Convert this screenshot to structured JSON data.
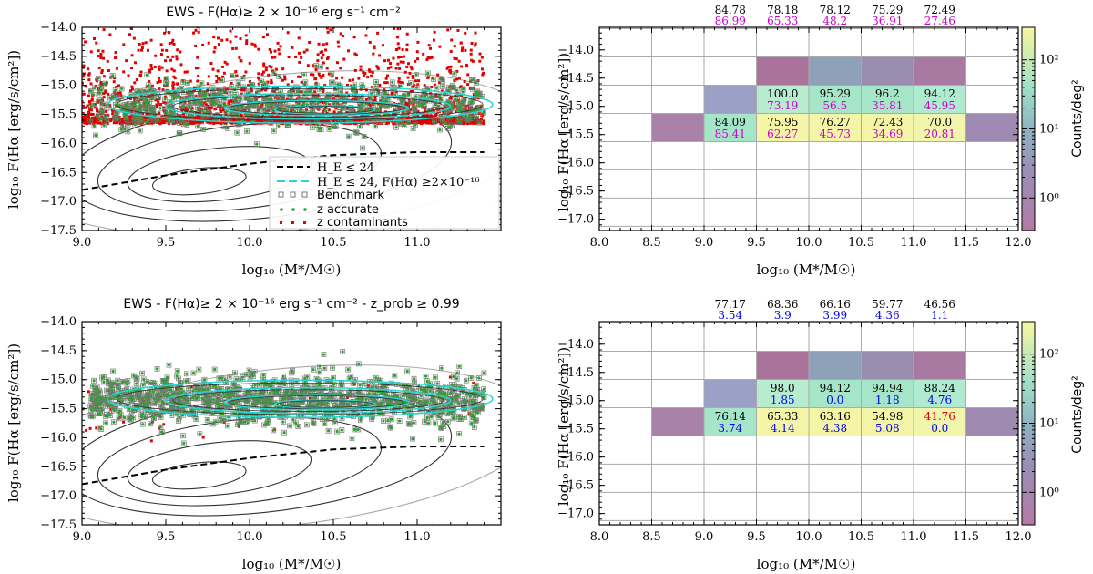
{
  "chart_data": [
    {
      "type": "scatter",
      "panel": "top-left",
      "title": "EWS - F(Hα)≥ 2 × 10⁻¹⁶ erg s⁻¹ cm⁻²",
      "xlabel": "log₁₀ (M*/M☉)",
      "ylabel": "log₁₀ F(Hα [erg/s/cm²])",
      "xlim": [
        9.0,
        11.5
      ],
      "ylim": [
        -17.5,
        -14.0
      ],
      "xticks": [
        "9.0",
        "9.5",
        "10.0",
        "10.5",
        "11.0"
      ],
      "yticks": [
        "-14.0",
        "-14.5",
        "-15.0",
        "-15.5",
        "-16.0",
        "-16.5",
        "-17.0",
        "-17.5"
      ],
      "dashed_line": {
        "x": [
          9.0,
          9.5,
          10.0,
          10.5,
          11.0,
          11.4
        ],
        "y": [
          -16.8,
          -16.55,
          -16.35,
          -16.2,
          -16.15,
          -16.15
        ]
      },
      "legend": {
        "placement": "lower-right",
        "entries": [
          "H_E ≤ 24",
          "H_E ≤ 24, F(Hα) ≥2×10⁻¹⁶",
          "Benchmark",
          "z accurate",
          "z contaminants"
        ]
      }
    },
    {
      "type": "heatmap",
      "panel": "top-right",
      "xlabel": "log₁₀ (M*/M☉)",
      "ylabel": "log₁₀ F(Hα [erg/s/cm²])",
      "xlim": [
        8.0,
        12.0
      ],
      "ylim": [
        -17.2,
        -13.6
      ],
      "xticks": [
        "8.0",
        "8.5",
        "9.0",
        "9.5",
        "10.0",
        "10.5",
        "11.0",
        "11.5",
        "12.0"
      ],
      "yticks": [
        "-14.0",
        "-14.5",
        "-15.0",
        "-15.5",
        "-16.0",
        "-16.5",
        "-17.0"
      ],
      "colorbar": {
        "label": "Counts/deg²",
        "ticks": [
          "10⁰",
          "10¹",
          "10²"
        ]
      },
      "column_labels": {
        "x": [
          9.25,
          9.75,
          10.25,
          10.75,
          11.25
        ],
        "top": [
          "84.78",
          "78.18",
          "78.12",
          "75.29",
          "72.49"
        ],
        "bottom": [
          "86.99",
          "65.33",
          "48.2",
          "36.91",
          "27.46"
        ],
        "bottom_colors": [
          "#cc00cc",
          "#cc00cc",
          "#cc00cc",
          "#cc00cc",
          "#cc00cc"
        ]
      },
      "cells": [
        {
          "x": 9.75,
          "y": -14.375,
          "color": "#a9739b"
        },
        {
          "x": 10.25,
          "y": -14.375,
          "color": "#8fa1b8"
        },
        {
          "x": 10.75,
          "y": -14.375,
          "color": "#9a8db0"
        },
        {
          "x": 11.25,
          "y": -14.375,
          "color": "#a87aa2"
        },
        {
          "x": 9.25,
          "y": -14.875,
          "color": "#9ba0c6"
        },
        {
          "x": 9.75,
          "y": -14.875,
          "color": "#b7ecd0",
          "top": "100.0",
          "bottom": "73.19",
          "bottom_color": "#cc00cc"
        },
        {
          "x": 10.25,
          "y": -14.875,
          "color": "#a6e6c8",
          "top": "95.29",
          "bottom": "56.5",
          "bottom_color": "#cc00cc"
        },
        {
          "x": 10.75,
          "y": -14.875,
          "color": "#a6e6c8",
          "top": "96.2",
          "bottom": "35.81",
          "bottom_color": "#cc00cc"
        },
        {
          "x": 11.25,
          "y": -14.875,
          "color": "#b0ead0",
          "top": "94.12",
          "bottom": "45.95",
          "bottom_color": "#cc00cc"
        },
        {
          "x": 8.75,
          "y": -15.375,
          "color": "#a982a9"
        },
        {
          "x": 9.25,
          "y": -15.375,
          "color": "#a6e6c8",
          "top": "84.09",
          "bottom": "85.41",
          "bottom_color": "#cc00cc"
        },
        {
          "x": 9.75,
          "y": -15.375,
          "color": "#f5f5a8",
          "top": "75.95",
          "bottom": "62.27",
          "bottom_color": "#cc00cc"
        },
        {
          "x": 10.25,
          "y": -15.375,
          "color": "#f5f5a8",
          "top": "76.27",
          "bottom": "45.73",
          "bottom_color": "#cc00cc"
        },
        {
          "x": 10.75,
          "y": -15.375,
          "color": "#f5f5a8",
          "top": "72.43",
          "bottom": "34.69",
          "bottom_color": "#cc00cc"
        },
        {
          "x": 11.25,
          "y": -15.375,
          "color": "#f2f5ac",
          "top": "70.0",
          "bottom": "20.81",
          "bottom_color": "#cc00cc"
        },
        {
          "x": 11.75,
          "y": -15.375,
          "color": "#9f8bb1"
        }
      ]
    },
    {
      "type": "scatter",
      "panel": "bottom-left",
      "title": "EWS - F(Hα)≥ 2 × 10⁻¹⁶ erg s⁻¹ cm⁻² - z_prob ≥ 0.99",
      "xlabel": "log₁₀ (M*/M☉)",
      "ylabel": "log₁₀ F(Hα [erg/s/cm²])",
      "xlim": [
        9.0,
        11.5
      ],
      "ylim": [
        -17.5,
        -14.0
      ],
      "xticks": [
        "9.0",
        "9.5",
        "10.0",
        "10.5",
        "11.0"
      ],
      "yticks": [
        "-14.0",
        "-14.5",
        "-15.0",
        "-15.5",
        "-16.0",
        "-16.5",
        "-17.0",
        "-17.5"
      ],
      "dashed_line": {
        "x": [
          9.0,
          9.5,
          10.0,
          10.5,
          11.0,
          11.4
        ],
        "y": [
          -16.8,
          -16.55,
          -16.35,
          -16.2,
          -16.15,
          -16.15
        ]
      }
    },
    {
      "type": "heatmap",
      "panel": "bottom-right",
      "xlabel": "log₁₀ (M*/M☉)",
      "ylabel": "log₁₀ F(Hα [erg/s/cm²])",
      "xlim": [
        8.0,
        12.0
      ],
      "ylim": [
        -17.2,
        -13.6
      ],
      "xticks": [
        "8.0",
        "8.5",
        "9.0",
        "9.5",
        "10.0",
        "10.5",
        "11.0",
        "11.5",
        "12.0"
      ],
      "yticks": [
        "-14.0",
        "-14.5",
        "-15.0",
        "-15.5",
        "-16.0",
        "-16.5",
        "-17.0"
      ],
      "colorbar": {
        "label": "Counts/deg²",
        "ticks": [
          "10⁰",
          "10¹",
          "10²"
        ]
      },
      "column_labels": {
        "x": [
          9.25,
          9.75,
          10.25,
          10.75,
          11.25
        ],
        "top": [
          "77.17",
          "68.36",
          "66.16",
          "59.77",
          "46.56"
        ],
        "bottom": [
          "3.54",
          "3.9",
          "3.99",
          "4.36",
          "1.1"
        ],
        "bottom_colors": [
          "#0000ee",
          "#0000ee",
          "#0000ee",
          "#0000ee",
          "#0000ee"
        ]
      },
      "cells": [
        {
          "x": 9.75,
          "y": -14.375,
          "color": "#a9739b"
        },
        {
          "x": 10.25,
          "y": -14.375,
          "color": "#8fa1b8"
        },
        {
          "x": 10.75,
          "y": -14.375,
          "color": "#9a8db0"
        },
        {
          "x": 11.25,
          "y": -14.375,
          "color": "#a87aa2"
        },
        {
          "x": 9.25,
          "y": -14.875,
          "color": "#9ba0c6"
        },
        {
          "x": 9.75,
          "y": -14.875,
          "color": "#b7ecd0",
          "top": "98.0",
          "bottom": "1.85",
          "bottom_color": "#0000ee"
        },
        {
          "x": 10.25,
          "y": -14.875,
          "color": "#a6e6c8",
          "top": "94.12",
          "bottom": "0.0",
          "bottom_color": "#0000ee"
        },
        {
          "x": 10.75,
          "y": -14.875,
          "color": "#a6e6c8",
          "top": "94.94",
          "bottom": "1.18",
          "bottom_color": "#0000ee"
        },
        {
          "x": 11.25,
          "y": -14.875,
          "color": "#b0ead0",
          "top": "88.24",
          "bottom": "4.76",
          "bottom_color": "#0000ee"
        },
        {
          "x": 8.75,
          "y": -15.375,
          "color": "#a982a9"
        },
        {
          "x": 9.25,
          "y": -15.375,
          "color": "#a6e6c8",
          "top": "76.14",
          "bottom": "3.74",
          "bottom_color": "#0000ee"
        },
        {
          "x": 9.75,
          "y": -15.375,
          "color": "#f5f5a8",
          "top": "65.33",
          "bottom": "4.14",
          "bottom_color": "#0000ee"
        },
        {
          "x": 10.25,
          "y": -15.375,
          "color": "#f5f5a8",
          "top": "63.16",
          "bottom": "4.38",
          "bottom_color": "#0000ee"
        },
        {
          "x": 10.75,
          "y": -15.375,
          "color": "#f5f5a8",
          "top": "54.98",
          "bottom": "5.08",
          "bottom_color": "#0000ee"
        },
        {
          "x": 11.25,
          "y": -15.375,
          "color": "#f2f5ac",
          "top": "41.76",
          "top_color": "#dd0000",
          "bottom": "0.0",
          "bottom_color": "#0000ee"
        },
        {
          "x": 11.75,
          "y": -15.375,
          "color": "#9f8bb1"
        }
      ]
    }
  ],
  "colors": {
    "contaminant": "#e00000",
    "accurate": "#2aa12a",
    "benchmark": "#777777",
    "cyan_contour": "#2ad4d4",
    "contour": "#333333"
  }
}
